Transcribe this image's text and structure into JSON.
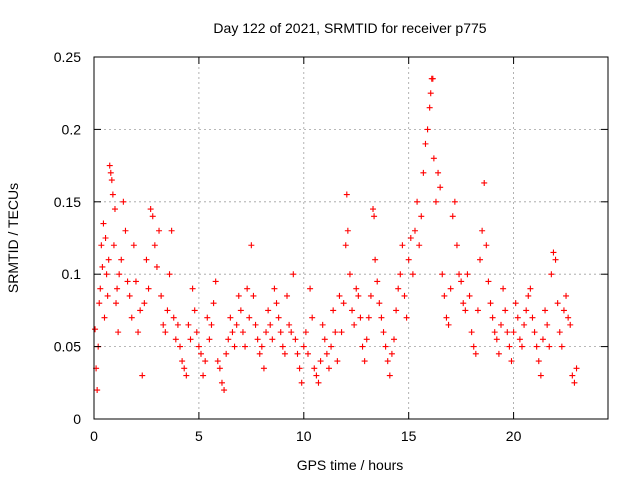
{
  "chart_data": {
    "type": "scatter",
    "title": "Day 122 of 2021, SRMTID for receiver p775",
    "xlabel": "GPS time / hours",
    "ylabel": "SRMTID / TECUs",
    "xlim": [
      0,
      24.5
    ],
    "ylim": [
      0,
      0.25
    ],
    "x_ticks": [
      0,
      5,
      10,
      15,
      20
    ],
    "x_tick_labels": [
      "0",
      "5",
      "10",
      "15",
      "20"
    ],
    "y_ticks": [
      0,
      0.05,
      0.1,
      0.15,
      0.2,
      0.25
    ],
    "y_tick_labels": [
      "0",
      "0.05",
      "0.1",
      "0.15",
      "0.2",
      "0.25"
    ],
    "grid": true,
    "marker": "+",
    "color": "#ff0000",
    "series": [
      {
        "name": "SRMTID",
        "points": [
          [
            0.05,
            0.062
          ],
          [
            0.1,
            0.035
          ],
          [
            0.15,
            0.02
          ],
          [
            0.2,
            0.05
          ],
          [
            0.25,
            0.08
          ],
          [
            0.3,
            0.09
          ],
          [
            0.35,
            0.12
          ],
          [
            0.4,
            0.105
          ],
          [
            0.45,
            0.135
          ],
          [
            0.5,
            0.07
          ],
          [
            0.55,
            0.125
          ],
          [
            0.6,
            0.1
          ],
          [
            0.65,
            0.085
          ],
          [
            0.7,
            0.11
          ],
          [
            0.75,
            0.175
          ],
          [
            0.8,
            0.17
          ],
          [
            0.85,
            0.165
          ],
          [
            0.9,
            0.155
          ],
          [
            0.95,
            0.12
          ],
          [
            1.0,
            0.145
          ],
          [
            1.05,
            0.08
          ],
          [
            1.1,
            0.09
          ],
          [
            1.15,
            0.06
          ],
          [
            1.2,
            0.1
          ],
          [
            1.3,
            0.11
          ],
          [
            1.4,
            0.15
          ],
          [
            1.5,
            0.13
          ],
          [
            1.6,
            0.095
          ],
          [
            1.7,
            0.085
          ],
          [
            1.8,
            0.07
          ],
          [
            1.9,
            0.12
          ],
          [
            2.0,
            0.095
          ],
          [
            2.1,
            0.06
          ],
          [
            2.2,
            0.075
          ],
          [
            2.3,
            0.03
          ],
          [
            2.4,
            0.08
          ],
          [
            2.5,
            0.11
          ],
          [
            2.6,
            0.09
          ],
          [
            2.7,
            0.145
          ],
          [
            2.8,
            0.14
          ],
          [
            2.9,
            0.12
          ],
          [
            3.0,
            0.105
          ],
          [
            3.1,
            0.13
          ],
          [
            3.2,
            0.085
          ],
          [
            3.3,
            0.065
          ],
          [
            3.4,
            0.06
          ],
          [
            3.5,
            0.075
          ],
          [
            3.6,
            0.1
          ],
          [
            3.7,
            0.13
          ],
          [
            3.8,
            0.07
          ],
          [
            3.9,
            0.055
          ],
          [
            4.0,
            0.065
          ],
          [
            4.1,
            0.05
          ],
          [
            4.2,
            0.04
          ],
          [
            4.3,
            0.035
          ],
          [
            4.4,
            0.03
          ],
          [
            4.5,
            0.065
          ],
          [
            4.6,
            0.055
          ],
          [
            4.7,
            0.09
          ],
          [
            4.8,
            0.075
          ],
          [
            4.9,
            0.06
          ],
          [
            5.0,
            0.05
          ],
          [
            5.1,
            0.045
          ],
          [
            5.2,
            0.03
          ],
          [
            5.3,
            0.04
          ],
          [
            5.4,
            0.07
          ],
          [
            5.5,
            0.055
          ],
          [
            5.6,
            0.065
          ],
          [
            5.7,
            0.08
          ],
          [
            5.8,
            0.095
          ],
          [
            5.9,
            0.04
          ],
          [
            6.0,
            0.035
          ],
          [
            6.1,
            0.025
          ],
          [
            6.2,
            0.02
          ],
          [
            6.3,
            0.045
          ],
          [
            6.4,
            0.055
          ],
          [
            6.5,
            0.07
          ],
          [
            6.6,
            0.06
          ],
          [
            6.7,
            0.05
          ],
          [
            6.8,
            0.065
          ],
          [
            6.9,
            0.085
          ],
          [
            7.0,
            0.075
          ],
          [
            7.1,
            0.06
          ],
          [
            7.2,
            0.05
          ],
          [
            7.3,
            0.09
          ],
          [
            7.4,
            0.07
          ],
          [
            7.5,
            0.12
          ],
          [
            7.6,
            0.085
          ],
          [
            7.7,
            0.065
          ],
          [
            7.8,
            0.055
          ],
          [
            7.9,
            0.045
          ],
          [
            8.0,
            0.05
          ],
          [
            8.1,
            0.035
          ],
          [
            8.2,
            0.06
          ],
          [
            8.3,
            0.075
          ],
          [
            8.4,
            0.065
          ],
          [
            8.5,
            0.055
          ],
          [
            8.6,
            0.09
          ],
          [
            8.7,
            0.08
          ],
          [
            8.8,
            0.07
          ],
          [
            8.9,
            0.06
          ],
          [
            9.0,
            0.05
          ],
          [
            9.1,
            0.045
          ],
          [
            9.2,
            0.085
          ],
          [
            9.3,
            0.065
          ],
          [
            9.4,
            0.06
          ],
          [
            9.5,
            0.1
          ],
          [
            9.6,
            0.055
          ],
          [
            9.7,
            0.045
          ],
          [
            9.8,
            0.035
          ],
          [
            9.9,
            0.025
          ],
          [
            10.0,
            0.05
          ],
          [
            10.1,
            0.06
          ],
          [
            10.2,
            0.045
          ],
          [
            10.3,
            0.09
          ],
          [
            10.4,
            0.07
          ],
          [
            10.5,
            0.035
          ],
          [
            10.6,
            0.03
          ],
          [
            10.7,
            0.025
          ],
          [
            10.8,
            0.04
          ],
          [
            10.9,
            0.065
          ],
          [
            11.0,
            0.055
          ],
          [
            11.1,
            0.045
          ],
          [
            11.2,
            0.035
          ],
          [
            11.3,
            0.05
          ],
          [
            11.4,
            0.075
          ],
          [
            11.5,
            0.06
          ],
          [
            11.6,
            0.04
          ],
          [
            11.7,
            0.085
          ],
          [
            11.8,
            0.06
          ],
          [
            11.9,
            0.08
          ],
          [
            12.0,
            0.12
          ],
          [
            12.05,
            0.155
          ],
          [
            12.1,
            0.13
          ],
          [
            12.2,
            0.1
          ],
          [
            12.3,
            0.075
          ],
          [
            12.4,
            0.065
          ],
          [
            12.5,
            0.09
          ],
          [
            12.6,
            0.085
          ],
          [
            12.7,
            0.07
          ],
          [
            12.8,
            0.05
          ],
          [
            12.9,
            0.04
          ],
          [
            13.0,
            0.055
          ],
          [
            13.1,
            0.07
          ],
          [
            13.2,
            0.085
          ],
          [
            13.3,
            0.145
          ],
          [
            13.35,
            0.14
          ],
          [
            13.4,
            0.11
          ],
          [
            13.5,
            0.095
          ],
          [
            13.6,
            0.08
          ],
          [
            13.7,
            0.07
          ],
          [
            13.8,
            0.06
          ],
          [
            13.9,
            0.05
          ],
          [
            14.0,
            0.04
          ],
          [
            14.1,
            0.03
          ],
          [
            14.2,
            0.045
          ],
          [
            14.3,
            0.055
          ],
          [
            14.4,
            0.075
          ],
          [
            14.5,
            0.09
          ],
          [
            14.6,
            0.1
          ],
          [
            14.7,
            0.12
          ],
          [
            14.8,
            0.085
          ],
          [
            14.9,
            0.07
          ],
          [
            15.0,
            0.11
          ],
          [
            15.1,
            0.125
          ],
          [
            15.2,
            0.1
          ],
          [
            15.3,
            0.13
          ],
          [
            15.4,
            0.15
          ],
          [
            15.5,
            0.12
          ],
          [
            15.6,
            0.14
          ],
          [
            15.7,
            0.17
          ],
          [
            15.8,
            0.19
          ],
          [
            15.9,
            0.2
          ],
          [
            16.0,
            0.215
          ],
          [
            16.05,
            0.225
          ],
          [
            16.1,
            0.235
          ],
          [
            16.15,
            0.235
          ],
          [
            16.2,
            0.18
          ],
          [
            16.3,
            0.15
          ],
          [
            16.4,
            0.17
          ],
          [
            16.5,
            0.16
          ],
          [
            16.6,
            0.1
          ],
          [
            16.7,
            0.085
          ],
          [
            16.8,
            0.07
          ],
          [
            16.9,
            0.065
          ],
          [
            17.0,
            0.09
          ],
          [
            17.1,
            0.14
          ],
          [
            17.2,
            0.15
          ],
          [
            17.3,
            0.12
          ],
          [
            17.4,
            0.1
          ],
          [
            17.5,
            0.095
          ],
          [
            17.6,
            0.08
          ],
          [
            17.7,
            0.075
          ],
          [
            17.8,
            0.1
          ],
          [
            17.9,
            0.085
          ],
          [
            18.0,
            0.06
          ],
          [
            18.1,
            0.05
          ],
          [
            18.2,
            0.045
          ],
          [
            18.3,
            0.075
          ],
          [
            18.4,
            0.11
          ],
          [
            18.5,
            0.13
          ],
          [
            18.6,
            0.163
          ],
          [
            18.7,
            0.12
          ],
          [
            18.8,
            0.095
          ],
          [
            18.9,
            0.08
          ],
          [
            19.0,
            0.07
          ],
          [
            19.1,
            0.06
          ],
          [
            19.2,
            0.055
          ],
          [
            19.3,
            0.045
          ],
          [
            19.4,
            0.065
          ],
          [
            19.5,
            0.09
          ],
          [
            19.6,
            0.075
          ],
          [
            19.7,
            0.06
          ],
          [
            19.8,
            0.05
          ],
          [
            19.9,
            0.04
          ],
          [
            20.0,
            0.06
          ],
          [
            20.1,
            0.08
          ],
          [
            20.2,
            0.07
          ],
          [
            20.3,
            0.055
          ],
          [
            20.4,
            0.05
          ],
          [
            20.5,
            0.065
          ],
          [
            20.6,
            0.075
          ],
          [
            20.7,
            0.085
          ],
          [
            20.8,
            0.09
          ],
          [
            20.9,
            0.07
          ],
          [
            21.0,
            0.06
          ],
          [
            21.1,
            0.05
          ],
          [
            21.2,
            0.04
          ],
          [
            21.3,
            0.03
          ],
          [
            21.4,
            0.055
          ],
          [
            21.5,
            0.075
          ],
          [
            21.6,
            0.065
          ],
          [
            21.7,
            0.05
          ],
          [
            21.8,
            0.1
          ],
          [
            21.9,
            0.115
          ],
          [
            22.0,
            0.11
          ],
          [
            22.1,
            0.08
          ],
          [
            22.2,
            0.06
          ],
          [
            22.3,
            0.05
          ],
          [
            22.4,
            0.075
          ],
          [
            22.5,
            0.085
          ],
          [
            22.6,
            0.07
          ],
          [
            22.7,
            0.065
          ],
          [
            22.8,
            0.03
          ],
          [
            22.9,
            0.025
          ],
          [
            23.0,
            0.035
          ]
        ]
      }
    ]
  }
}
